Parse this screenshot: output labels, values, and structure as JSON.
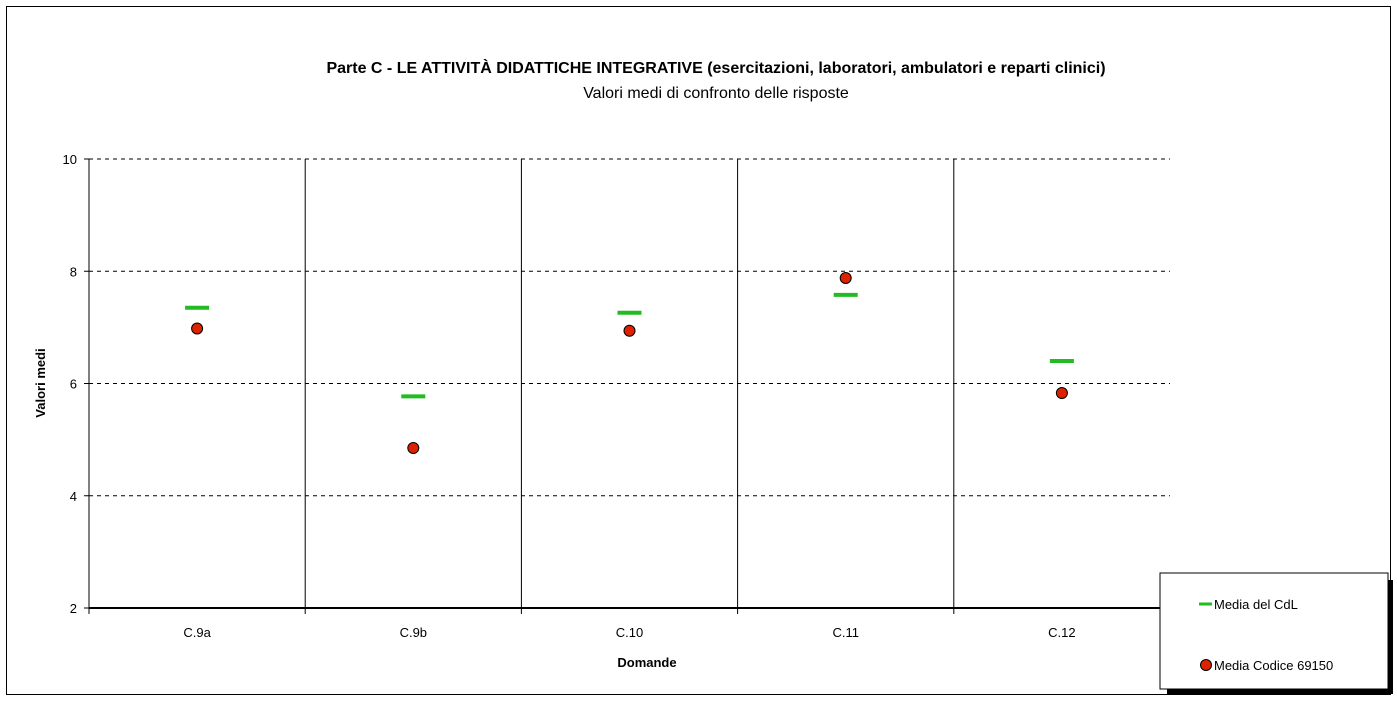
{
  "chart_data": {
    "type": "scatter",
    "title": "Parte C - LE ATTIVITÀ DIDATTICHE INTEGRATIVE (esercitazioni, laboratori, ambulatori e reparti clinici)",
    "subtitle": "Valori medi di confronto delle risposte",
    "xlabel": "Domande",
    "ylabel": "Valori medi",
    "categories": [
      "C.9a",
      "C.9b",
      "C.10",
      "C.11",
      "C.12"
    ],
    "ylim": [
      2,
      10
    ],
    "yticks": [
      "2",
      "4",
      "6",
      "8",
      "10"
    ],
    "grid": true,
    "legend_position": "bottom-right",
    "series": [
      {
        "name": "Media del CdL",
        "marker": "dash",
        "color": "#22bb22",
        "values": [
          7.35,
          5.77,
          7.26,
          7.58,
          6.4
        ]
      },
      {
        "name": "Media Codice 69150",
        "marker": "circle",
        "color": "#dd2200",
        "values": [
          6.98,
          4.85,
          6.94,
          7.88,
          5.83
        ]
      }
    ]
  }
}
